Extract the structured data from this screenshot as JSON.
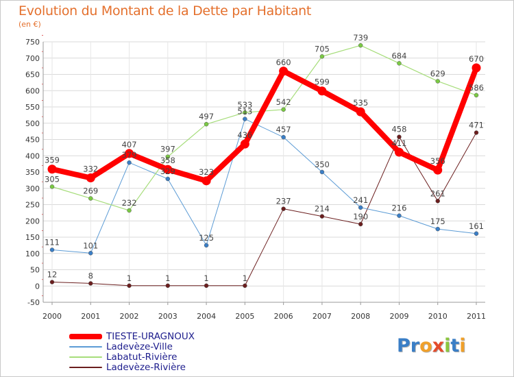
{
  "title": "Evolution du Montant de la Dette par Habitant",
  "subtitle": "(en €)",
  "logo": {
    "letters": [
      "P",
      "r",
      "o",
      "x",
      "i",
      "t",
      "i"
    ],
    "colors": [
      "#3a7ec6",
      "#3a7ec6",
      "#f0a02a",
      "#e44b2b",
      "#8cc63f",
      "#3a7ec6",
      "#f0a02a"
    ]
  },
  "chart_data": {
    "type": "line",
    "x": [
      "2000",
      "2001",
      "2002",
      "2003",
      "2004",
      "2005",
      "2006",
      "2007",
      "2008",
      "2009",
      "2010",
      "2011"
    ],
    "ylim": [
      -50,
      750
    ],
    "yticks": [
      -50,
      0,
      50,
      100,
      150,
      200,
      250,
      300,
      350,
      400,
      450,
      500,
      550,
      600,
      650,
      700,
      750
    ],
    "grid": true,
    "legend_position": "bottom-left",
    "series": [
      {
        "name": "Ladevèze-Rivière",
        "color": "#6b1e1e",
        "marker": "#6b1e1e",
        "width": 1,
        "values": [
          12,
          8,
          1,
          1,
          1,
          1,
          237,
          214,
          190,
          458,
          261,
          471
        ],
        "labels": [
          "12",
          "8",
          "1",
          "1",
          "1",
          "1",
          "237",
          "214",
          "190",
          "458",
          "261",
          "471"
        ]
      },
      {
        "name": "Ladevèze-Ville",
        "color": "#5b9bd5",
        "marker": "#3a7ec6",
        "width": 1,
        "values": [
          111,
          101,
          379,
          329,
          125,
          513,
          457,
          350,
          241,
          216,
          175,
          161
        ],
        "labels": [
          "111",
          "101",
          "379",
          "329",
          "125",
          "513",
          "457",
          "350",
          "241",
          "216",
          "175",
          "161"
        ]
      },
      {
        "name": "Labatut-Rivière",
        "color": "#a6dd7a",
        "marker": "#7ac943",
        "width": 1.2,
        "values": [
          305,
          269,
          232,
          397,
          497,
          533,
          542,
          705,
          739,
          684,
          629,
          586
        ],
        "labels": [
          "305",
          "269",
          "232",
          "397",
          "497",
          "533",
          "542",
          "705",
          "739",
          "684",
          "629",
          "586"
        ]
      },
      {
        "name": "TIESTE-URAGNOUX",
        "color": "#ff0000",
        "marker": "#ff0000",
        "width": 8,
        "values": [
          359,
          332,
          407,
          358,
          323,
          436,
          660,
          599,
          535,
          411,
          356,
          670
        ],
        "labels": [
          "359",
          "332",
          "407",
          "358",
          "323",
          "436",
          "660",
          "599",
          "535",
          "411",
          "356",
          "670"
        ]
      }
    ],
    "legend": [
      "TIESTE-URAGNOUX",
      "Ladevèze-Ville",
      "Labatut-Rivière",
      "Ladevèze-Rivière"
    ]
  }
}
